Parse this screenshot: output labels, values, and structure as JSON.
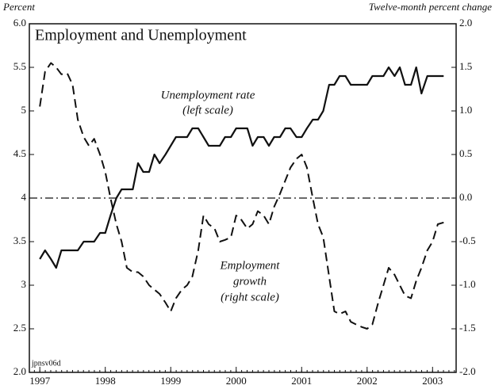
{
  "chart_data": {
    "type": "line",
    "title": "Employment and Unemployment",
    "y_label": "Percent",
    "y2_label": "Twelve-month percent change",
    "annotations": [
      "Unemployment rate",
      "(left scale)",
      "Employment",
      "growth",
      "(right scale)"
    ],
    "footnote": "jpnsv06d",
    "x": [
      1997.0,
      1997.08,
      1997.17,
      1997.25,
      1997.33,
      1997.42,
      1997.5,
      1997.58,
      1997.67,
      1997.75,
      1997.83,
      1997.92,
      1998.0,
      1998.08,
      1998.17,
      1998.25,
      1998.33,
      1998.42,
      1998.5,
      1998.58,
      1998.67,
      1998.75,
      1998.83,
      1998.92,
      1999.0,
      1999.08,
      1999.17,
      1999.25,
      1999.33,
      1999.42,
      1999.5,
      1999.58,
      1999.67,
      1999.75,
      1999.83,
      1999.92,
      2000.0,
      2000.08,
      2000.17,
      2000.25,
      2000.33,
      2000.42,
      2000.5,
      2000.58,
      2000.67,
      2000.75,
      2000.83,
      2000.92,
      2001.0,
      2001.08,
      2001.17,
      2001.25,
      2001.33,
      2001.42,
      2001.5,
      2001.58,
      2001.67,
      2001.75,
      2001.83,
      2001.92,
      2002.0,
      2002.08,
      2002.17,
      2002.25,
      2002.33,
      2002.42,
      2002.5,
      2002.58,
      2002.67,
      2002.75,
      2002.83,
      2002.92,
      2003.0,
      2003.08,
      2003.17
    ],
    "series": [
      {
        "name": "Unemployment rate",
        "color": "#111111",
        "dash": "solid",
        "axis": "y",
        "values": [
          3.3,
          3.4,
          3.3,
          3.2,
          3.4,
          3.4,
          3.4,
          3.4,
          3.5,
          3.5,
          3.5,
          3.6,
          3.6,
          3.8,
          4.0,
          4.1,
          4.1,
          4.1,
          4.4,
          4.3,
          4.3,
          4.5,
          4.4,
          4.5,
          4.6,
          4.7,
          4.7,
          4.7,
          4.8,
          4.8,
          4.7,
          4.6,
          4.6,
          4.6,
          4.7,
          4.7,
          4.8,
          4.8,
          4.8,
          4.6,
          4.7,
          4.7,
          4.6,
          4.7,
          4.7,
          4.8,
          4.8,
          4.7,
          4.7,
          4.8,
          4.9,
          4.9,
          5.0,
          5.3,
          5.3,
          5.4,
          5.4,
          5.3,
          5.3,
          5.3,
          5.3,
          5.4,
          5.4,
          5.4,
          5.5,
          5.4,
          5.5,
          5.3,
          5.3,
          5.5,
          5.2,
          5.4,
          5.4,
          5.4,
          5.4
        ]
      },
      {
        "name": "Employment growth",
        "color": "#111111",
        "dash": "dashed",
        "axis": "y2",
        "values": [
          1.05,
          1.45,
          1.55,
          1.5,
          1.42,
          1.43,
          1.3,
          0.9,
          0.7,
          0.6,
          0.68,
          0.5,
          0.3,
          0.0,
          -0.3,
          -0.5,
          -0.8,
          -0.85,
          -0.85,
          -0.9,
          -1.0,
          -1.05,
          -1.1,
          -1.2,
          -1.3,
          -1.15,
          -1.05,
          -1.0,
          -0.9,
          -0.6,
          -0.2,
          -0.3,
          -0.35,
          -0.5,
          -0.48,
          -0.45,
          -0.2,
          -0.25,
          -0.35,
          -0.3,
          -0.15,
          -0.2,
          -0.3,
          -0.1,
          0.05,
          0.2,
          0.35,
          0.45,
          0.5,
          0.35,
          0.0,
          -0.3,
          -0.45,
          -0.9,
          -1.3,
          -1.33,
          -1.3,
          -1.42,
          -1.45,
          -1.48,
          -1.5,
          -1.45,
          -1.2,
          -1.0,
          -0.8,
          -0.88,
          -1.0,
          -1.12,
          -1.15,
          -0.95,
          -0.8,
          -0.6,
          -0.5,
          -0.3,
          -0.28
        ]
      }
    ],
    "reference_line": {
      "axis": "y2",
      "value": 0
    },
    "xlim": [
      1996.84,
      2003.36
    ],
    "xticks": [
      1997,
      1998,
      1999,
      2000,
      2001,
      2002,
      2003
    ],
    "ylim": [
      2.0,
      6.0
    ],
    "yticks": [
      {
        "value": 2.0,
        "label": "2.0"
      },
      2.5,
      3.0,
      3.5,
      4.0,
      4.5,
      5.0,
      5.5,
      {
        "value": 6.0,
        "label": "6.0"
      }
    ],
    "y2lim": [
      -2.0,
      2.0
    ],
    "y2ticks": [
      {
        "value": -2.0,
        "label": "-2.0"
      },
      -1.5,
      {
        "value": -1.0,
        "label": "-1.0"
      },
      -0.5,
      {
        "value": 0.0,
        "label": "0.0"
      },
      0.5,
      {
        "value": 1.0,
        "label": "1.0"
      },
      1.5,
      {
        "value": 2.0,
        "label": "2.0"
      }
    ]
  }
}
